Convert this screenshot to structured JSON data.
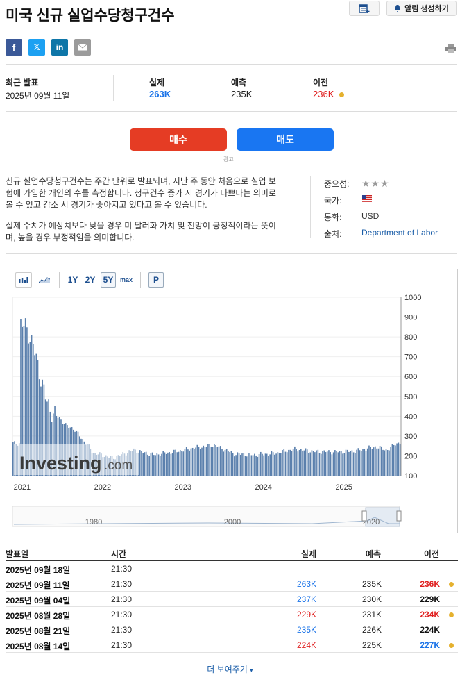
{
  "title": "미국 신규 실업수당청구건수",
  "alert_label": "알림 생성하기",
  "share": {
    "facebook": "f",
    "twitter": "𝕏",
    "linkedin": "in"
  },
  "release": {
    "latest_label": "최근 발표",
    "latest_date": "2025년 09월 11일",
    "actual_label": "실제",
    "actual": "263K",
    "forecast_label": "예측",
    "forecast": "235K",
    "previous_label": "이전",
    "previous": "236K"
  },
  "trade": {
    "buy": "매수",
    "sell": "매도",
    "ad_mark": "광고"
  },
  "description": {
    "p1": "신규 실업수당청구건수는 주간 단위로 발표되며, 지난 주 동안 처음으로 실업 보험에 가입한 개인의 수를 측정합니다. 청구건수 증가 시 경기가 나쁘다는 의미로 볼 수 있고 감소 시 경기가 좋아지고 있다고 볼 수 있습니다.",
    "p2": "실제 수치가 예상치보다 낮을 경우 미 달러화 가치 및 전망이 긍정적이라는 뜻이며, 높을 경우 부정적임을 의미합니다."
  },
  "meta": {
    "importance_label": "중요성:",
    "country_label": "국가:",
    "currency_label": "통화:",
    "currency": "USD",
    "source_label": "출처:",
    "source": "Department of Labor"
  },
  "chart_tools": {
    "r1y": "1Y",
    "r2y": "2Y",
    "r5y": "5Y",
    "rmax": "max",
    "p": "P"
  },
  "watermark": {
    "brand": "Investing",
    "suffix": ".com"
  },
  "chart_data": {
    "type": "bar",
    "title": "",
    "y_ticks": [
      1000,
      900,
      800,
      700,
      600,
      500,
      400,
      300,
      200,
      100
    ],
    "ylim": [
      100,
      1000
    ],
    "x_ticks": [
      "2021",
      "2022",
      "2023",
      "2024",
      "2025"
    ],
    "navigator_ticks": [
      "1980",
      "2000",
      "2020"
    ],
    "series_color": "#5b80ad",
    "anchors": [
      [
        "2021-01",
        870
      ],
      [
        "2021-02",
        850
      ],
      [
        "2021-03",
        760
      ],
      [
        "2021-04",
        620
      ],
      [
        "2021-05",
        480
      ],
      [
        "2021-06",
        410
      ],
      [
        "2021-07",
        390
      ],
      [
        "2021-08",
        350
      ],
      [
        "2021-09",
        340
      ],
      [
        "2021-10",
        300
      ],
      [
        "2021-11",
        260
      ],
      [
        "2021-12",
        215
      ],
      [
        "2022-03",
        190
      ],
      [
        "2022-06",
        230
      ],
      [
        "2022-09",
        205
      ],
      [
        "2022-12",
        220
      ],
      [
        "2023-03",
        240
      ],
      [
        "2023-06",
        255
      ],
      [
        "2023-09",
        210
      ],
      [
        "2023-12",
        205
      ],
      [
        "2024-03",
        212
      ],
      [
        "2024-06",
        235
      ],
      [
        "2024-09",
        222
      ],
      [
        "2024-12",
        220
      ],
      [
        "2025-03",
        224
      ],
      [
        "2025-06",
        246
      ],
      [
        "2025-08",
        230
      ],
      [
        "2025-09",
        263
      ]
    ]
  },
  "table": {
    "headers": {
      "date": "발표일",
      "time": "시간",
      "actual": "실제",
      "forecast": "예측",
      "previous": "이전"
    },
    "rows": [
      {
        "date": "2025년 09월 18일",
        "time": "21:30",
        "actual": "",
        "forecast": "",
        "previous": "",
        "actual_color": "#222",
        "prev_color": "#111",
        "dot": false
      },
      {
        "date": "2025년 09월 11일",
        "time": "21:30",
        "actual": "263K",
        "forecast": "235K",
        "previous": "236K",
        "actual_color": "#1a73e8",
        "prev_color": "#e02020",
        "dot": true
      },
      {
        "date": "2025년 09월 04일",
        "time": "21:30",
        "actual": "237K",
        "forecast": "230K",
        "previous": "229K",
        "actual_color": "#1a73e8",
        "prev_color": "#111",
        "dot": false
      },
      {
        "date": "2025년 08월 28일",
        "time": "21:30",
        "actual": "229K",
        "forecast": "231K",
        "previous": "234K",
        "actual_color": "#e02020",
        "prev_color": "#e02020",
        "dot": true
      },
      {
        "date": "2025년 08월 21일",
        "time": "21:30",
        "actual": "235K",
        "forecast": "226K",
        "previous": "224K",
        "actual_color": "#1a73e8",
        "prev_color": "#111",
        "dot": false
      },
      {
        "date": "2025년 08월 14일",
        "time": "21:30",
        "actual": "224K",
        "forecast": "225K",
        "previous": "227K",
        "actual_color": "#e02020",
        "prev_color": "#1a73e8",
        "dot": true
      }
    ]
  },
  "more_label": "더 보여주기"
}
